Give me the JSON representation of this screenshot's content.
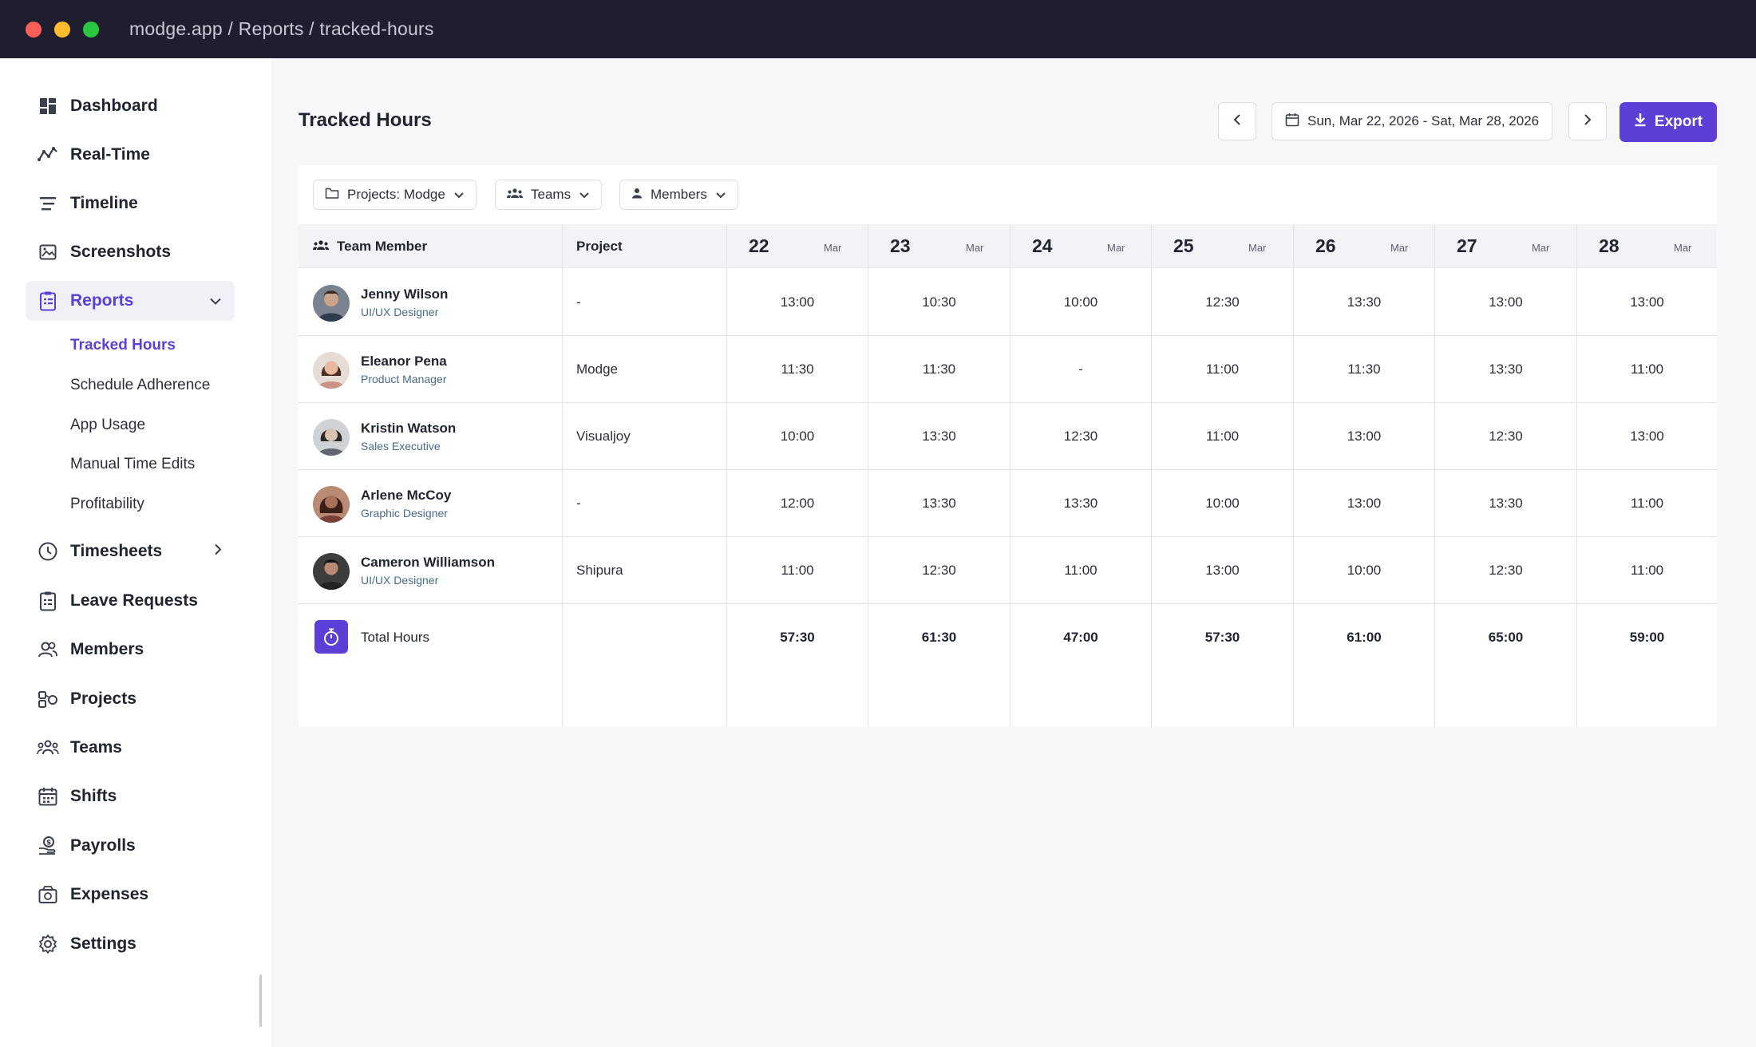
{
  "window": {
    "url": "modge.app / Reports / tracked-hours"
  },
  "sidebar": {
    "items": [
      {
        "label": "Dashboard",
        "icon": "dashboard-icon"
      },
      {
        "label": "Real-Time",
        "icon": "realtime-icon"
      },
      {
        "label": "Timeline",
        "icon": "timeline-icon"
      },
      {
        "label": "Screenshots",
        "icon": "screenshots-icon"
      },
      {
        "label": "Reports",
        "icon": "reports-icon",
        "expanded": true
      },
      {
        "label": "Timesheets",
        "icon": "timesheets-icon"
      },
      {
        "label": "Leave Requests",
        "icon": "leave-requests-icon"
      },
      {
        "label": "Members",
        "icon": "members-icon"
      },
      {
        "label": "Projects",
        "icon": "projects-icon"
      },
      {
        "label": "Teams",
        "icon": "teams-icon"
      },
      {
        "label": "Shifts",
        "icon": "shifts-icon"
      },
      {
        "label": "Payrolls",
        "icon": "payrolls-icon"
      },
      {
        "label": "Expenses",
        "icon": "expenses-icon"
      },
      {
        "label": "Settings",
        "icon": "settings-icon"
      }
    ],
    "reports_sub": [
      "Tracked Hours",
      "Schedule Adherence",
      "App Usage",
      "Manual Time Edits",
      "Profitability"
    ]
  },
  "main": {
    "title": "Tracked Hours",
    "date_range": "Sun, Mar 22, 2026 - Sat, Mar 28, 2026",
    "export_label": "Export",
    "filters": {
      "projects": "Projects: Modge",
      "teams": "Teams",
      "members": "Members"
    }
  },
  "table": {
    "headers": {
      "member": "Team Member",
      "project": "Project"
    },
    "days": [
      {
        "num": "22",
        "mon": "Mar"
      },
      {
        "num": "23",
        "mon": "Mar"
      },
      {
        "num": "24",
        "mon": "Mar"
      },
      {
        "num": "25",
        "mon": "Mar"
      },
      {
        "num": "26",
        "mon": "Mar"
      },
      {
        "num": "27",
        "mon": "Mar"
      },
      {
        "num": "28",
        "mon": "Mar"
      }
    ],
    "rows": [
      {
        "name": "Jenny Wilson",
        "role": "UI/UX Designer",
        "project": "-",
        "hours": [
          "13:00",
          "10:30",
          "10:00",
          "12:30",
          "13:30",
          "13:00",
          "13:00"
        ]
      },
      {
        "name": "Eleanor Pena",
        "role": "Product Manager",
        "project": "Modge",
        "hours": [
          "11:30",
          "11:30",
          "-",
          "11:00",
          "11:30",
          "13:30",
          "11:00"
        ]
      },
      {
        "name": "Kristin Watson",
        "role": "Sales Executive",
        "project": "Visualjoy",
        "hours": [
          "10:00",
          "13:30",
          "12:30",
          "11:00",
          "13:00",
          "12:30",
          "13:00"
        ]
      },
      {
        "name": "Arlene McCoy",
        "role": "Graphic Designer",
        "project": "-",
        "hours": [
          "12:00",
          "13:30",
          "13:30",
          "10:00",
          "13:00",
          "13:30",
          "11:00"
        ]
      },
      {
        "name": "Cameron Williamson",
        "role": "UI/UX Designer",
        "project": "Shipura",
        "hours": [
          "11:00",
          "12:30",
          "11:00",
          "13:00",
          "10:00",
          "12:30",
          "11:00"
        ]
      }
    ],
    "total": {
      "label": "Total Hours",
      "hours": [
        "57:30",
        "61:30",
        "47:00",
        "57:30",
        "61:00",
        "65:00",
        "59:00"
      ]
    }
  },
  "colors": {
    "accent": "#5b3fd6",
    "titlebar": "#1e1e2e"
  }
}
